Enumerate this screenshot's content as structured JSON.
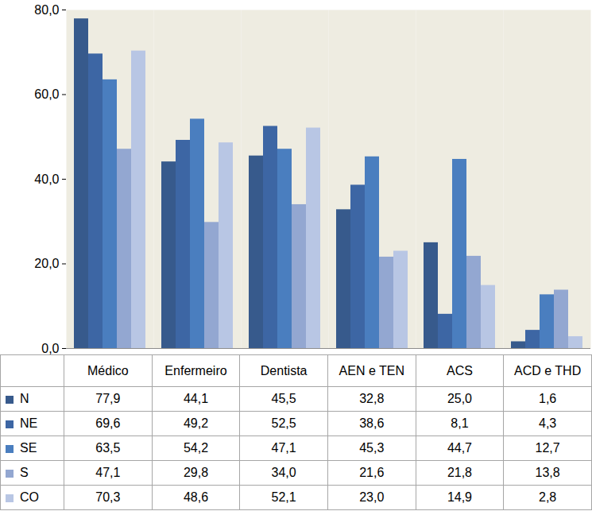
{
  "chart_data": {
    "type": "bar",
    "categories": [
      "Médico",
      "Enfermeiro",
      "Dentista",
      "AEN e TEN",
      "ACS",
      "ACD e THD"
    ],
    "series": [
      {
        "name": "N",
        "color": "#375a8c",
        "values": [
          77.9,
          44.1,
          45.5,
          32.8,
          25.0,
          1.6
        ],
        "value_labels": [
          "77,9",
          "44,1",
          "45,5",
          "32,8",
          "25,0",
          "1,6"
        ]
      },
      {
        "name": "NE",
        "color": "#3d66a4",
        "values": [
          69.6,
          49.2,
          52.5,
          38.6,
          8.1,
          4.3
        ],
        "value_labels": [
          "69,6",
          "49,2",
          "52,5",
          "38,6",
          "8,1",
          "4,3"
        ]
      },
      {
        "name": "SE",
        "color": "#4a7ebf",
        "values": [
          63.5,
          54.2,
          47.1,
          45.3,
          44.7,
          12.7
        ],
        "value_labels": [
          "63,5",
          "54,2",
          "47,1",
          "45,3",
          "44,7",
          "12,7"
        ]
      },
      {
        "name": "S",
        "color": "#93a7d1",
        "values": [
          47.1,
          29.8,
          34.0,
          21.6,
          21.8,
          13.8
        ],
        "value_labels": [
          "47,1",
          "29,8",
          "34,0",
          "21,6",
          "21,8",
          "13,8"
        ]
      },
      {
        "name": "CO",
        "color": "#b8c6e4",
        "values": [
          70.3,
          48.6,
          52.1,
          23.0,
          14.9,
          2.8
        ],
        "value_labels": [
          "70,3",
          "48,6",
          "52,1",
          "23,0",
          "14,9",
          "2,8"
        ]
      }
    ],
    "ylim": [
      0,
      80
    ],
    "yticks": [
      {
        "value": 0,
        "label": "0,0"
      },
      {
        "value": 20,
        "label": "20,0"
      },
      {
        "value": 40,
        "label": "40,0"
      },
      {
        "value": 60,
        "label": "60,0"
      },
      {
        "value": 80,
        "label": "80,0"
      }
    ],
    "grid": false
  }
}
